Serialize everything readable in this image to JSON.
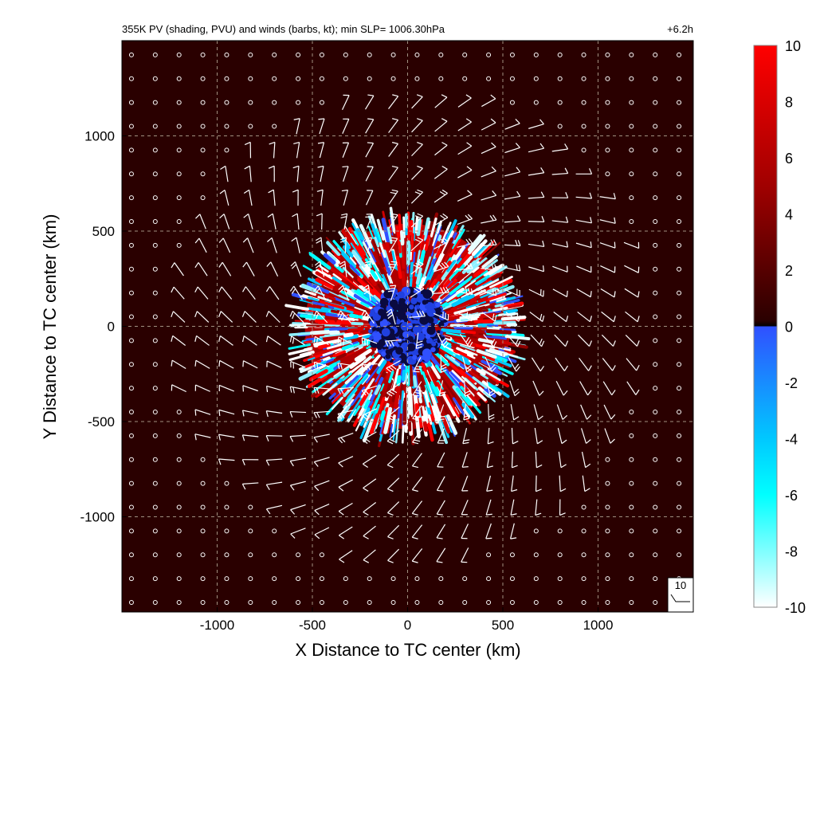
{
  "chart_data": {
    "type": "heatmap",
    "title": "355K PV (shading, PVU) and winds (barbs, kt); min SLP= 1006.30hPa",
    "time_label": "+6.2h",
    "xlabel": "X Distance to TC center (km)",
    "ylabel": "Y Distance to TC center (km)",
    "xlim": [
      -1500,
      1500
    ],
    "ylim": [
      -1500,
      1500
    ],
    "xticks": [
      -1000,
      -500,
      0,
      500,
      1000
    ],
    "xtick_labels": [
      "-1000",
      "-500",
      "0",
      "500",
      "1000"
    ],
    "yticks": [
      -1000,
      -500,
      0,
      500,
      1000
    ],
    "ytick_labels": [
      "-1000",
      "-500",
      "0",
      "500",
      "1000"
    ],
    "grid": true,
    "field": {
      "variable": "355K PV",
      "units": "PVU",
      "background_value": 1,
      "disturbed_region_radius_km": 550,
      "core_radius_km": 200
    },
    "colorbar": {
      "range": [
        -10,
        10
      ],
      "ticks": [
        10,
        8,
        6,
        4,
        2,
        0,
        -2,
        -4,
        -6,
        -8,
        -10
      ],
      "tick_labels": [
        "10",
        "8",
        "6",
        "4",
        "2",
        "0",
        "-2",
        "-4",
        "-6",
        "-8",
        "-10"
      ],
      "colors_positive": [
        "#000000",
        "#4a0000",
        "#ff0000"
      ],
      "colors_negative": [
        "#3050ff",
        "#00ffff",
        "#ffffff"
      ]
    },
    "winds": {
      "units": "kt",
      "barb_spacing_km": 125,
      "calm_radius_km": 1250,
      "reference_barb_label": "10"
    }
  }
}
